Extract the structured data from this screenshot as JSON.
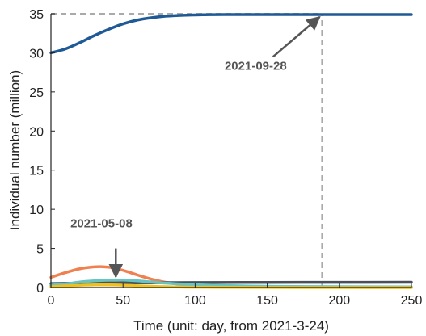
{
  "chart_data": {
    "type": "line",
    "xlabel": "Time (unit: day, from 2021-3-24)",
    "ylabel": "Individual number (million)",
    "xlim": [
      0,
      250
    ],
    "ylim": [
      0,
      35
    ],
    "xticks": [
      0,
      50,
      100,
      150,
      200,
      250
    ],
    "yticks": [
      0,
      5,
      10,
      15,
      20,
      25,
      30,
      35
    ],
    "grid": false,
    "legend": "none",
    "series": [
      {
        "color": "#1f5a96",
        "x": [
          0,
          10,
          20,
          30,
          40,
          50,
          60,
          70,
          80,
          90,
          100,
          110,
          120,
          140,
          160,
          180,
          200,
          250
        ],
        "y": [
          30.0,
          30.5,
          31.3,
          32.2,
          33.0,
          33.7,
          34.2,
          34.5,
          34.7,
          34.8,
          34.85,
          34.88,
          34.9,
          34.9,
          34.9,
          34.9,
          34.9,
          34.9
        ]
      },
      {
        "color": "#f08050",
        "x": [
          0,
          10,
          20,
          30,
          40,
          50,
          60,
          70,
          80,
          90,
          100,
          120,
          150,
          200,
          250
        ],
        "y": [
          1.3,
          1.9,
          2.4,
          2.65,
          2.6,
          2.2,
          1.6,
          1.05,
          0.65,
          0.4,
          0.25,
          0.12,
          0.05,
          0.02,
          0.01
        ]
      },
      {
        "color": "#4a4f5a",
        "x": [
          0,
          20,
          40,
          60,
          80,
          100,
          150,
          200,
          250
        ],
        "y": [
          0.5,
          0.55,
          0.58,
          0.6,
          0.62,
          0.63,
          0.65,
          0.66,
          0.67
        ]
      },
      {
        "color": "#66c5c0",
        "x": [
          0,
          10,
          20,
          30,
          40,
          50,
          60,
          70,
          80,
          90,
          100,
          120,
          150,
          200,
          250
        ],
        "y": [
          0.3,
          0.45,
          0.7,
          0.85,
          0.95,
          0.95,
          0.85,
          0.7,
          0.55,
          0.45,
          0.35,
          0.25,
          0.15,
          0.1,
          0.08
        ]
      },
      {
        "color": "#f0c020",
        "x": [
          0,
          10,
          20,
          30,
          40,
          50,
          60,
          70,
          80,
          90,
          100,
          120,
          150,
          200,
          250
        ],
        "y": [
          0.1,
          0.2,
          0.28,
          0.33,
          0.33,
          0.3,
          0.22,
          0.15,
          0.1,
          0.06,
          0.04,
          0.02,
          0.01,
          0.0,
          0.0
        ]
      }
    ],
    "reference_lines": [
      {
        "kind": "horizontal",
        "y": 35,
        "x_from": 0,
        "x_to": 188,
        "color": "#aaaaaa",
        "dash": true
      },
      {
        "kind": "vertical",
        "x": 188,
        "y_from": 0,
        "y_to": 35,
        "color": "#aaaaaa",
        "dash": true
      }
    ],
    "annotations": [
      {
        "text": "2021-09-28",
        "point_x": 188,
        "point_y": 34.9,
        "color": "#555555"
      },
      {
        "text": "2021-05-08",
        "point_x": 45,
        "point_y": 0.95,
        "color": "#555555"
      }
    ]
  }
}
